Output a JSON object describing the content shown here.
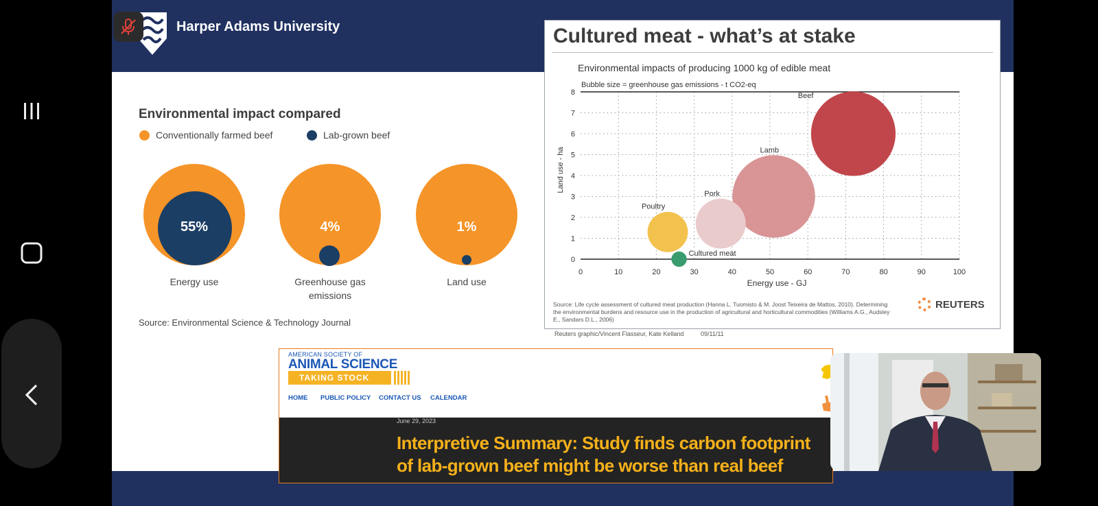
{
  "slide": {
    "university": "Harper Adams University",
    "env_panel": {
      "title": "Environmental impact compared",
      "legend": [
        {
          "label": "Conventionally farmed beef",
          "color": "#f59428"
        },
        {
          "label": "Lab-grown beef",
          "color": "#1b3e64"
        }
      ],
      "circles": [
        {
          "label": "Energy use",
          "percent": "55%",
          "value": 55
        },
        {
          "label": "Greenhouse gas emissions",
          "percent": "4%",
          "value": 4
        },
        {
          "label": "Land use",
          "percent": "1%",
          "value": 1
        }
      ],
      "source": "Source: Environmental Science & Technology Journal"
    },
    "reuters_chart": {
      "heading": "Cultured meat - what’s at stake",
      "source_text": "Source: Life cycle assessment of cultured meat production (Hanna L. Tuomisto & M. Joost Teixeira de Mattos, 2010). Determining the environmental burdens and resource use in the production of agricultural and horticultural commodities (Williams A.G., Audsley E., Sandars D.L., 2006)",
      "brand": "REUTERS",
      "credit": "Reuters graphic/Vincent Flasseur, Kate Kelland",
      "credit_date": "09/11/11"
    },
    "article": {
      "society_top": "AMERICAN SOCIETY OF",
      "society_main": "ANIMAL SCIENCE",
      "tagline": "TAKING STOCK",
      "nav": [
        "HOME",
        "PUBLIC POLICY",
        "CONTACT US",
        "CALENDAR"
      ],
      "date": "June 29, 2023",
      "title": "Interpretive Summary: Study finds carbon footprint of lab-grown beef might be worse than real beef"
    }
  },
  "icons": {
    "mic": "mic-off-icon",
    "nav": [
      "recents-icon",
      "home-icon",
      "back-icon"
    ]
  },
  "chart_data": {
    "type": "scatter",
    "title": "Environmental impacts of producing 1000 kg of edible meat",
    "subtitle": "Bubble size = greenhouse gas emissions - t CO2-eq",
    "xlabel": "Energy use - GJ",
    "ylabel": "Land use - ha",
    "xlim": [
      0,
      100
    ],
    "ylim": [
      0,
      8
    ],
    "xticks": [
      0,
      10,
      20,
      30,
      40,
      50,
      60,
      70,
      80,
      90,
      100
    ],
    "yticks": [
      0,
      1,
      2,
      3,
      4,
      5,
      6,
      7,
      8
    ],
    "grid": true,
    "points": [
      {
        "name": "Beef",
        "x": 72,
        "y": 6.0,
        "r": 22,
        "color": "#c1464b"
      },
      {
        "name": "Lamb",
        "x": 51,
        "y": 3.0,
        "r": 21.5,
        "color": "#d99495"
      },
      {
        "name": "Pork",
        "x": 37,
        "y": 1.7,
        "r": 13,
        "color": "#eacbcb"
      },
      {
        "name": "Poultry",
        "x": 23,
        "y": 1.3,
        "r": 10.5,
        "color": "#f3c24e"
      },
      {
        "name": "Cultured meat",
        "x": 26,
        "y": 0.0,
        "r": 4,
        "color": "#3a9c6e"
      }
    ]
  }
}
